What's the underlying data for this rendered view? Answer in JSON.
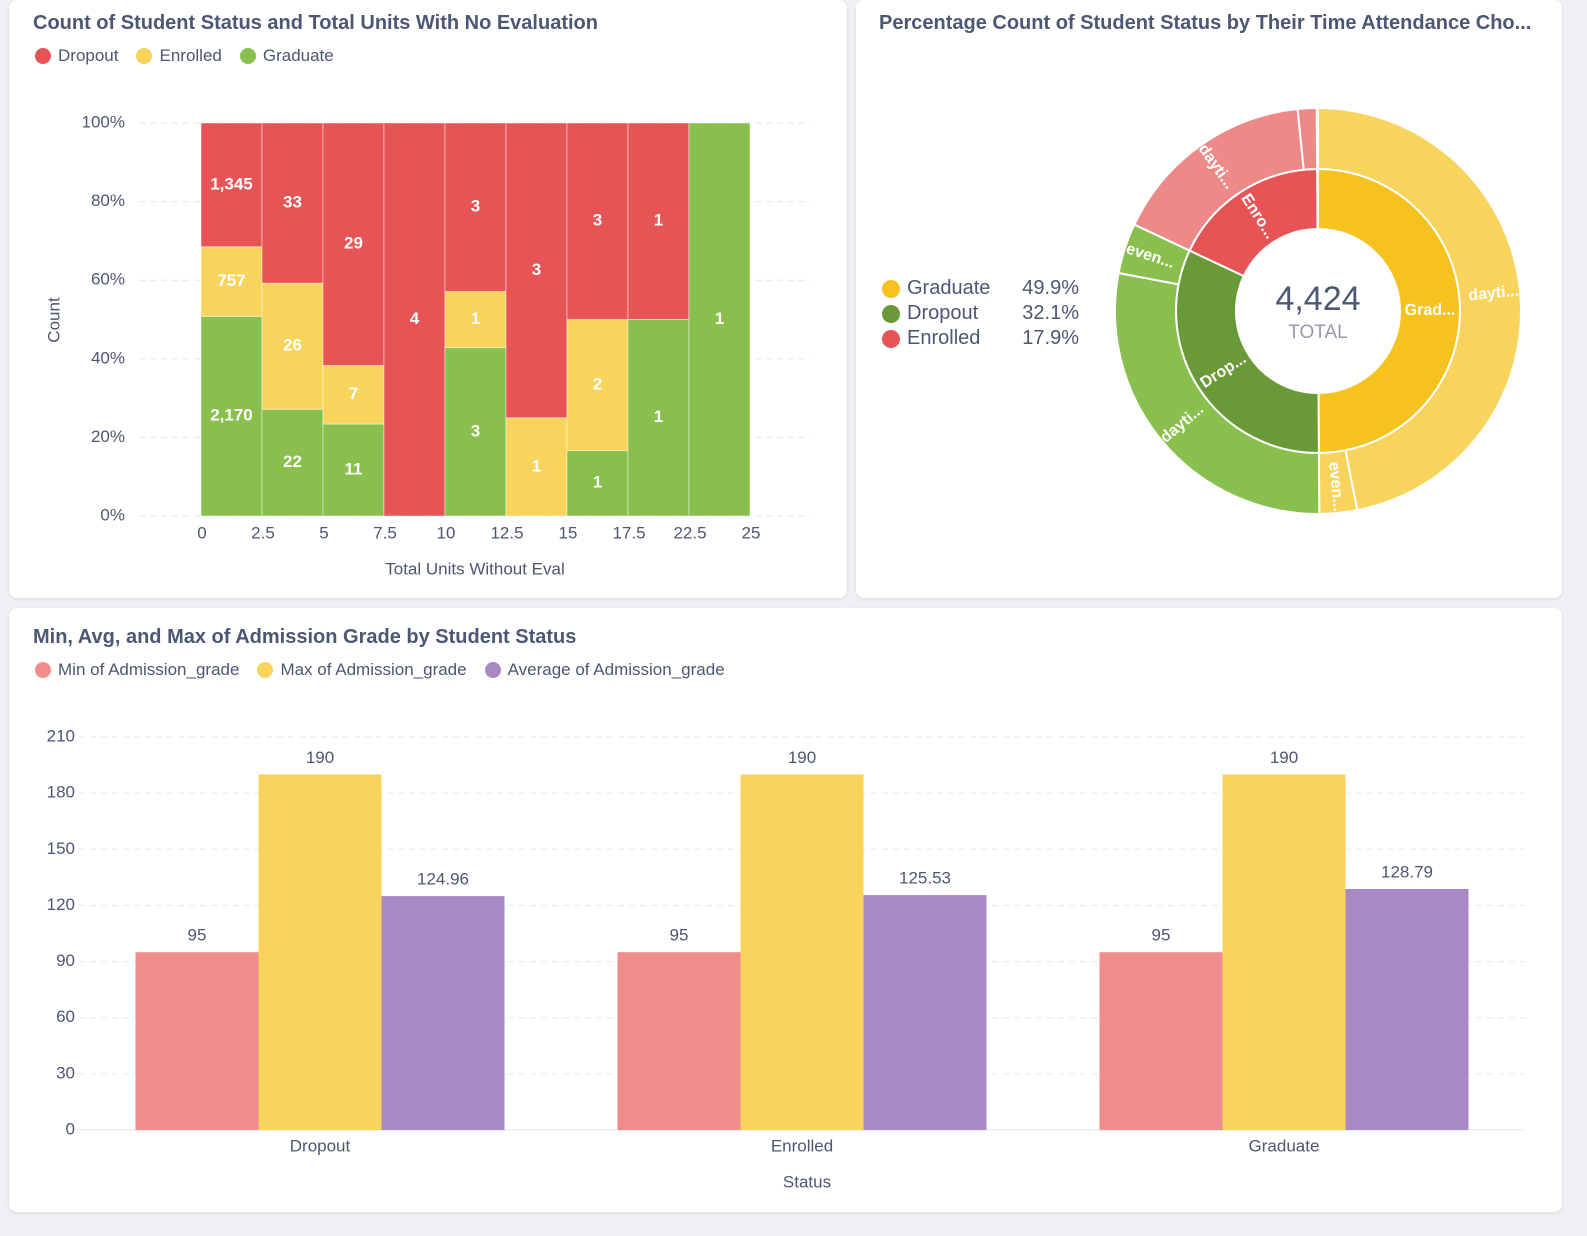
{
  "colors": {
    "red": "#e75455",
    "yellow": "#f9d45c",
    "green": "#88bf4d",
    "dark_yellow": "#f5c220",
    "dark_green": "#6a9a37",
    "pink": "#ed8a88",
    "purple": "#a989c5",
    "min_color": "#ef8c8c"
  },
  "stacked_card": {
    "title": "Count of Student Status and Total Units With No Evaluation",
    "legend": [
      {
        "label": "Dropout",
        "color": "#e75455"
      },
      {
        "label": "Enrolled",
        "color": "#f9d45c"
      },
      {
        "label": "Graduate",
        "color": "#88bf4d"
      }
    ]
  },
  "sunburst_card": {
    "title": "Percentage Count of Student Status by Their Time Attendance Cho...",
    "legend": [
      {
        "label": "Graduate",
        "pct": "49.9%",
        "color": "#f5c220"
      },
      {
        "label": "Dropout",
        "pct": "32.1%",
        "color": "#6a9a37"
      },
      {
        "label": "Enrolled",
        "pct": "17.9%",
        "color": "#e75455"
      }
    ],
    "total": "4,424",
    "total_label": "TOTAL"
  },
  "bars_card": {
    "title": "Min, Avg, and Max of Admission Grade by Student Status",
    "legend": [
      {
        "label": "Min of Admission_grade",
        "color": "#ef8c8c"
      },
      {
        "label": "Max of Admission_grade",
        "color": "#f9d45c"
      },
      {
        "label": "Average of Admission_grade",
        "color": "#a989c5"
      }
    ]
  },
  "chart_data": [
    {
      "type": "bar",
      "stacked": "100%",
      "title": "Count of Student Status and Total Units With No Evaluation",
      "xlabel": "Total Units Without Eval",
      "ylabel": "Count",
      "x_ticks": [
        "0",
        "2.5",
        "5",
        "7.5",
        "10",
        "12.5",
        "15",
        "17.5",
        "22.5",
        "25"
      ],
      "y_ticks": [
        "0%",
        "20%",
        "40%",
        "60%",
        "80%",
        "100%"
      ],
      "ylim": [
        0,
        100
      ],
      "bins": [
        "0–2.5",
        "2.5–5",
        "5–7.5",
        "7.5–10",
        "10–12.5",
        "12.5–15",
        "15–17.5",
        "17.5–22.5",
        "22.5–25"
      ],
      "series": [
        {
          "name": "Graduate",
          "values": [
            2170,
            22,
            11,
            0,
            3,
            0,
            1,
            1,
            1
          ]
        },
        {
          "name": "Enrolled",
          "values": [
            757,
            26,
            7,
            0,
            1,
            1,
            2,
            0,
            0
          ]
        },
        {
          "name": "Dropout",
          "values": [
            1345,
            33,
            29,
            4,
            3,
            3,
            3,
            1,
            0
          ]
        }
      ]
    },
    {
      "type": "pie",
      "style": "sunburst",
      "title": "Percentage Count of Student Status by Their Time Attendance Cho...",
      "total": 4424,
      "inner": [
        {
          "name": "Graduate",
          "percent": 49.9,
          "label": "Grad..."
        },
        {
          "name": "Dropout",
          "percent": 32.1,
          "label": "Drop..."
        },
        {
          "name": "Enrolled",
          "percent": 17.9,
          "label": "Enro..."
        }
      ],
      "outer": [
        {
          "parent": "Graduate",
          "percent": 46.9,
          "label": "dayti..."
        },
        {
          "parent": "Graduate",
          "percent": 3.0,
          "label": "even..."
        },
        {
          "parent": "Dropout",
          "percent": 28.1,
          "label": "dayti..."
        },
        {
          "parent": "Dropout",
          "percent": 4.0,
          "label": "even..."
        },
        {
          "parent": "Enrolled",
          "percent": 16.4,
          "label": "dayti..."
        },
        {
          "parent": "Enrolled",
          "percent": 1.5,
          "label": ""
        }
      ]
    },
    {
      "type": "bar",
      "title": "Min, Avg, and Max of Admission Grade by Student Status",
      "xlabel": "Status",
      "ylabel": "",
      "categories": [
        "Dropout",
        "Enrolled",
        "Graduate"
      ],
      "ylim": [
        0,
        210
      ],
      "y_ticks": [
        0,
        30,
        60,
        90,
        120,
        150,
        180,
        210
      ],
      "series": [
        {
          "name": "Min of Admission_grade",
          "values": [
            95,
            95,
            95
          ],
          "labels": [
            "95",
            "95",
            "95"
          ]
        },
        {
          "name": "Max of Admission_grade",
          "values": [
            190,
            190,
            190
          ],
          "labels": [
            "190",
            "190",
            "190"
          ]
        },
        {
          "name": "Average of Admission_grade",
          "values": [
            124.96,
            125.53,
            128.79
          ],
          "labels": [
            "124.96",
            "125.53",
            "128.79"
          ]
        }
      ]
    }
  ]
}
